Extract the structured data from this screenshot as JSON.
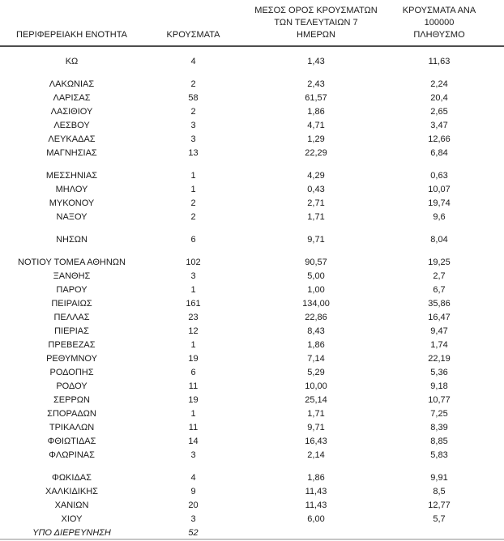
{
  "table": {
    "headers": {
      "region": "ΠΕΡΙΦΕΡΕΙΑΚΗ ΕΝΟΤΗΤΑ",
      "cases": "ΚΡΟΥΣΜΑΤΑ",
      "avg7": "ΜΕΣΟΣ ΟΡΟΣ ΚΡΟΥΣΜΑΤΩΝ\nΤΩΝ ΤΕΛΕΥΤΑΙΩΝ 7\nΗΜΕΡΩΝ",
      "per100k": "ΚΡΟΥΣΜΑΤΑ ΑΝΑ 100000\nΠΛΗΘΥΣΜΟ"
    },
    "header_rule_color": "#4d4d4d",
    "text_color": "#1a1a1a",
    "rows": [
      {
        "region": "ΚΩ",
        "cases": "4",
        "avg7": "1,43",
        "per100k": "11,63",
        "gap_before": true,
        "italic": false
      },
      {
        "region": "ΛΑΚΩΝΙΑΣ",
        "cases": "2",
        "avg7": "2,43",
        "per100k": "2,24",
        "gap_before": true,
        "italic": false
      },
      {
        "region": "ΛΑΡΙΣΑΣ",
        "cases": "58",
        "avg7": "61,57",
        "per100k": "20,4",
        "gap_before": false,
        "italic": false
      },
      {
        "region": "ΛΑΣΙΘΙΟΥ",
        "cases": "2",
        "avg7": "1,86",
        "per100k": "2,65",
        "gap_before": false,
        "italic": false
      },
      {
        "region": "ΛΕΣΒΟΥ",
        "cases": "3",
        "avg7": "4,71",
        "per100k": "3,47",
        "gap_before": false,
        "italic": false
      },
      {
        "region": "ΛΕΥΚΑΔΑΣ",
        "cases": "3",
        "avg7": "1,29",
        "per100k": "12,66",
        "gap_before": false,
        "italic": false
      },
      {
        "region": "ΜΑΓΝΗΣΙΑΣ",
        "cases": "13",
        "avg7": "22,29",
        "per100k": "6,84",
        "gap_before": false,
        "italic": false
      },
      {
        "region": "ΜΕΣΣΗΝΙΑΣ",
        "cases": "1",
        "avg7": "4,29",
        "per100k": "0,63",
        "gap_before": true,
        "italic": false
      },
      {
        "region": "ΜΗΛΟΥ",
        "cases": "1",
        "avg7": "0,43",
        "per100k": "10,07",
        "gap_before": false,
        "italic": false
      },
      {
        "region": "ΜΥΚΟΝΟΥ",
        "cases": "2",
        "avg7": "2,71",
        "per100k": "19,74",
        "gap_before": false,
        "italic": false
      },
      {
        "region": "ΝΑΞΟΥ",
        "cases": "2",
        "avg7": "1,71",
        "per100k": "9,6",
        "gap_before": false,
        "italic": false
      },
      {
        "region": "ΝΗΣΩΝ",
        "cases": "6",
        "avg7": "9,71",
        "per100k": "8,04",
        "gap_before": true,
        "italic": false
      },
      {
        "region": "ΝΟΤΙΟΥ ΤΟΜΕΑ ΑΘΗΝΩΝ",
        "cases": "102",
        "avg7": "90,57",
        "per100k": "19,25",
        "gap_before": true,
        "italic": false
      },
      {
        "region": "ΞΑΝΘΗΣ",
        "cases": "3",
        "avg7": "5,00",
        "per100k": "2,7",
        "gap_before": false,
        "italic": false
      },
      {
        "region": "ΠΑΡΟΥ",
        "cases": "1",
        "avg7": "1,00",
        "per100k": "6,7",
        "gap_before": false,
        "italic": false
      },
      {
        "region": "ΠΕΙΡΑΙΩΣ",
        "cases": "161",
        "avg7": "134,00",
        "per100k": "35,86",
        "gap_before": false,
        "italic": false
      },
      {
        "region": "ΠΕΛΛΑΣ",
        "cases": "23",
        "avg7": "22,86",
        "per100k": "16,47",
        "gap_before": false,
        "italic": false
      },
      {
        "region": "ΠΙΕΡΙΑΣ",
        "cases": "12",
        "avg7": "8,43",
        "per100k": "9,47",
        "gap_before": false,
        "italic": false
      },
      {
        "region": "ΠΡΕΒΕΖΑΣ",
        "cases": "1",
        "avg7": "1,86",
        "per100k": "1,74",
        "gap_before": false,
        "italic": false
      },
      {
        "region": "ΡΕΘΥΜΝΟΥ",
        "cases": "19",
        "avg7": "7,14",
        "per100k": "22,19",
        "gap_before": false,
        "italic": false
      },
      {
        "region": "ΡΟΔΟΠΗΣ",
        "cases": "6",
        "avg7": "5,29",
        "per100k": "5,36",
        "gap_before": false,
        "italic": false
      },
      {
        "region": "ΡΟΔΟΥ",
        "cases": "11",
        "avg7": "10,00",
        "per100k": "9,18",
        "gap_before": false,
        "italic": false
      },
      {
        "region": "ΣΕΡΡΩΝ",
        "cases": "19",
        "avg7": "25,14",
        "per100k": "10,77",
        "gap_before": false,
        "italic": false
      },
      {
        "region": "ΣΠΟΡΑΔΩΝ",
        "cases": "1",
        "avg7": "1,71",
        "per100k": "7,25",
        "gap_before": false,
        "italic": false
      },
      {
        "region": "ΤΡΙΚΑΛΩΝ",
        "cases": "11",
        "avg7": "9,71",
        "per100k": "8,39",
        "gap_before": false,
        "italic": false
      },
      {
        "region": "ΦΘΙΩΤΙΔΑΣ",
        "cases": "14",
        "avg7": "16,43",
        "per100k": "8,85",
        "gap_before": false,
        "italic": false
      },
      {
        "region": "ΦΛΩΡΙΝΑΣ",
        "cases": "3",
        "avg7": "2,14",
        "per100k": "5,83",
        "gap_before": false,
        "italic": false
      },
      {
        "region": "ΦΩΚΙΔΑΣ",
        "cases": "4",
        "avg7": "1,86",
        "per100k": "9,91",
        "gap_before": true,
        "italic": false
      },
      {
        "region": "ΧΑΛΚΙΔΙΚΗΣ",
        "cases": "9",
        "avg7": "11,43",
        "per100k": "8,5",
        "gap_before": false,
        "italic": false
      },
      {
        "region": "ΧΑΝΙΩΝ",
        "cases": "20",
        "avg7": "11,43",
        "per100k": "12,77",
        "gap_before": false,
        "italic": false
      },
      {
        "region": "ΧΙΟΥ",
        "cases": "3",
        "avg7": "6,00",
        "per100k": "5,7",
        "gap_before": false,
        "italic": false
      },
      {
        "region": "ΥΠΟ ΔΙΕΡΕΥΝΗΣΗ",
        "cases": "52",
        "avg7": "",
        "per100k": "",
        "gap_before": false,
        "italic": true
      }
    ]
  }
}
